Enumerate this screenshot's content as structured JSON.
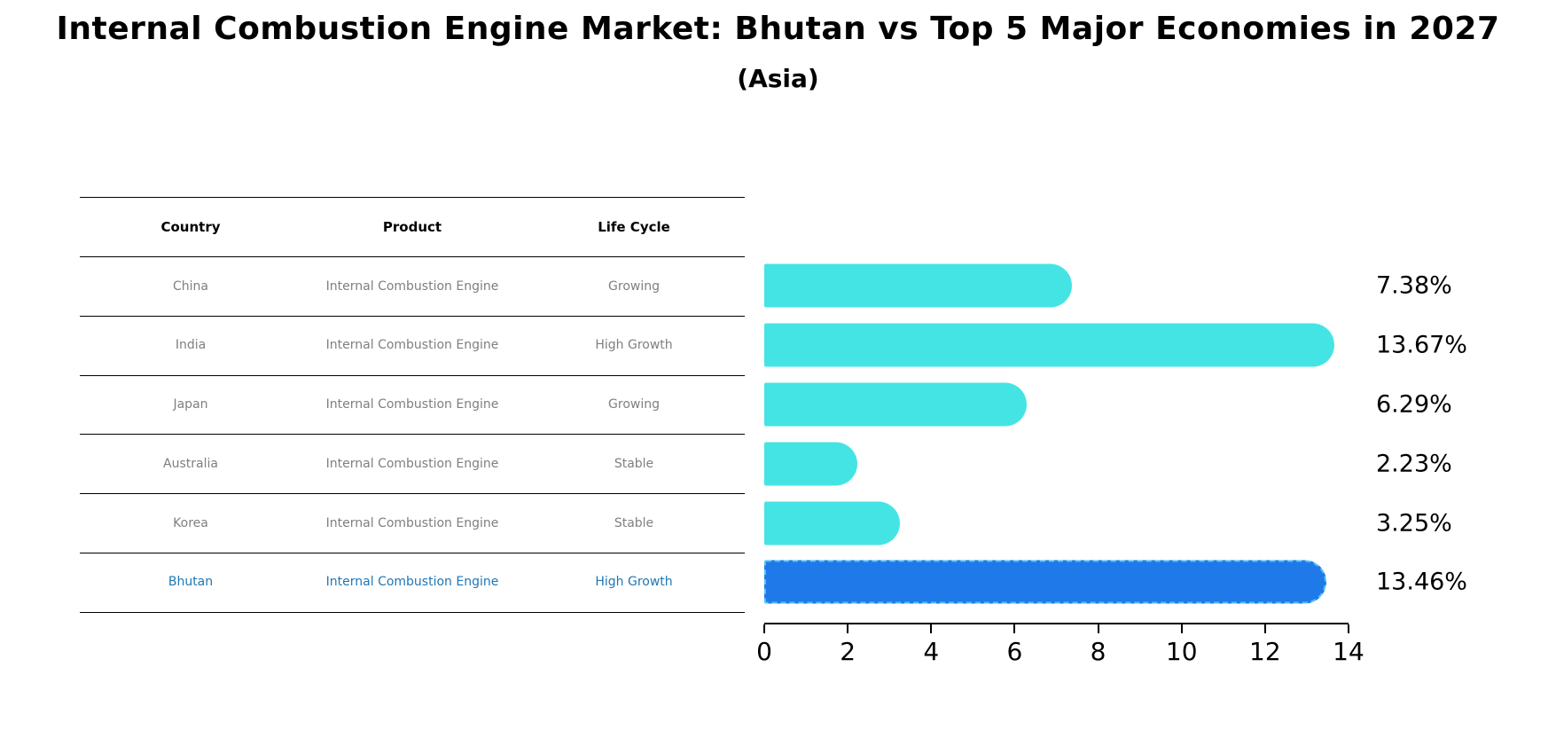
{
  "title": "Internal Combustion Engine Market: Bhutan vs Top 5 Major Economies in 2027",
  "subtitle": "(Asia)",
  "table": {
    "headers": [
      "Country",
      "Product",
      "Life Cycle"
    ],
    "rows": [
      {
        "country": "China",
        "product": "Internal Combustion Engine",
        "life_cycle": "Growing",
        "highlight": false
      },
      {
        "country": "India",
        "product": "Internal Combustion Engine",
        "life_cycle": "High Growth",
        "highlight": false
      },
      {
        "country": "Japan",
        "product": "Internal Combustion Engine",
        "life_cycle": "Growing",
        "highlight": false
      },
      {
        "country": "Australia",
        "product": "Internal Combustion Engine",
        "life_cycle": "Stable",
        "highlight": false
      },
      {
        "country": "Korea",
        "product": "Internal Combustion Engine",
        "life_cycle": "Stable",
        "highlight": false
      },
      {
        "country": "Bhutan",
        "product": "Internal Combustion Engine",
        "life_cycle": "High Growth",
        "highlight": true
      }
    ]
  },
  "chart_data": {
    "type": "bar",
    "orientation": "horizontal",
    "title": "Internal Combustion Engine Market: Bhutan vs Top 5 Major Economies in 2027",
    "subtitle": "(Asia)",
    "categories": [
      "China",
      "India",
      "Japan",
      "Australia",
      "Korea",
      "Bhutan"
    ],
    "values": [
      7.38,
      13.67,
      6.29,
      2.23,
      3.25,
      13.46
    ],
    "value_labels": [
      "7.38%",
      "13.67%",
      "6.29%",
      "2.23%",
      "3.25%",
      "13.46%"
    ],
    "xlabel": "",
    "ylabel": "",
    "xlim": [
      0,
      14
    ],
    "x_ticks": [
      0,
      2,
      4,
      6,
      8,
      10,
      12,
      14
    ],
    "grid": false,
    "legend": false,
    "bar_color": "#45E4E4",
    "highlight_index": 5,
    "highlight_bar_color": "#2079E8",
    "highlight_text_color": "#1F77B4",
    "table_text_color": "#7f7f7f"
  }
}
